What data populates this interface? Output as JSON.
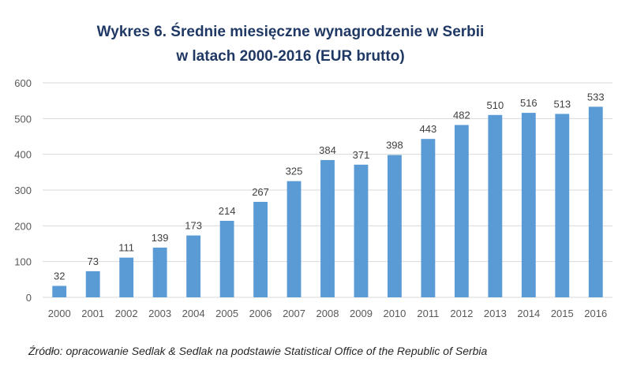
{
  "title_line1": "Wykres 6. Średnie miesięczne wynagrodzenie w Serbii",
  "title_line2": "w latach 2000-2016 (EUR brutto)",
  "source_note": "Źródło: opracowanie Sedlak & Sedlak na podstawie Statistical Office of the Republic of Serbia",
  "colors": {
    "bar": "#5b9bd5",
    "grid": "#d9d9d9",
    "title": "#1f3864"
  },
  "chart_data": {
    "type": "bar",
    "title": "Wykres 6. Średnie miesięczne wynagrodzenie w Serbii w latach 2000-2016 (EUR brutto)",
    "categories": [
      "2000",
      "2001",
      "2002",
      "2003",
      "2004",
      "2005",
      "2006",
      "2007",
      "2008",
      "2009",
      "2010",
      "2011",
      "2012",
      "2013",
      "2014",
      "2015",
      "2016"
    ],
    "values": [
      32,
      73,
      111,
      139,
      173,
      214,
      267,
      325,
      384,
      371,
      398,
      443,
      482,
      510,
      516,
      513,
      533
    ],
    "ylim": [
      0,
      600
    ],
    "yticks": [
      0,
      100,
      200,
      300,
      400,
      500,
      600
    ],
    "grid": true,
    "data_labels": true,
    "legend": "none"
  }
}
